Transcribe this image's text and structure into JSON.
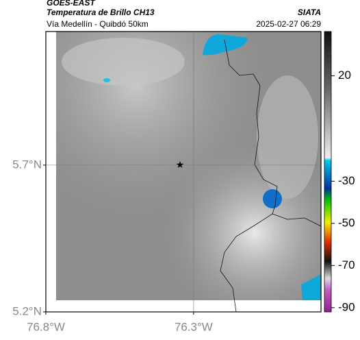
{
  "header": {
    "source": "GOES-EAST",
    "product": "Temperatura de Brillo CH13",
    "location": "Vía Medellín - Quibdó 50km",
    "agency": "SIATA",
    "datetime": "2025-02-27 06:29"
  },
  "map": {
    "lonlim": [
      -76.8,
      -75.869
    ],
    "latlim": [
      5.2,
      6.155
    ],
    "lonticks": [
      {
        "value": -76.8,
        "label": "76.8°W"
      },
      {
        "value": -76.3,
        "label": "76.3°W"
      }
    ],
    "latticks": [
      {
        "value": 5.2,
        "label": "5.2°N"
      },
      {
        "value": 5.7,
        "label": "5.7°N"
      }
    ],
    "marker": {
      "lon": -76.346,
      "lat": 5.701
    }
  },
  "colorbar": {
    "lim": [
      -92,
      41
    ],
    "ticks": [
      20,
      -30,
      -50,
      -70,
      -90
    ]
  }
}
